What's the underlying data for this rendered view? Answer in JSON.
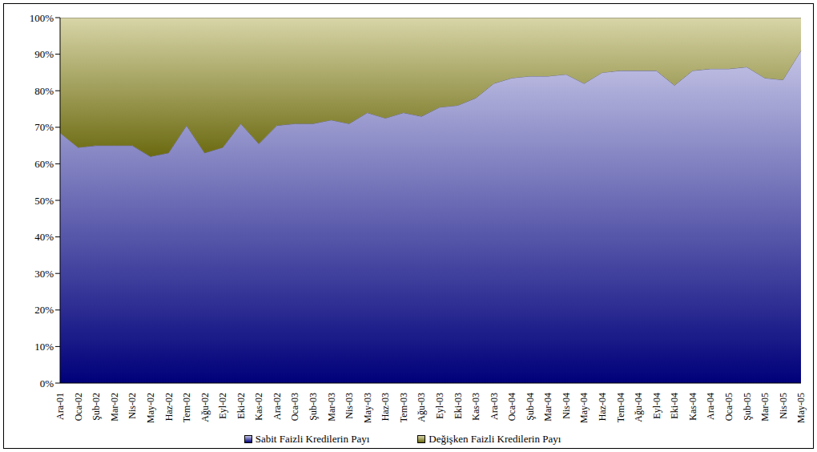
{
  "chart_data": {
    "type": "area",
    "stacked": true,
    "grid": false,
    "legend": "bottom",
    "categories": [
      "Ara-01",
      "Oca-02",
      "Şub-02",
      "Mar-02",
      "Nis-02",
      "May-02",
      "Haz-02",
      "Tem-02",
      "Ağu-02",
      "Eyl-02",
      "Eki-02",
      "Kas-02",
      "Ara-02",
      "Oca-03",
      "Şub-03",
      "Mar-03",
      "Nis-03",
      "May-03",
      "Haz-03",
      "Tem-03",
      "Ağu-03",
      "Eyl-03",
      "Eki-03",
      "Kas-03",
      "Ara-03",
      "Oca-04",
      "Şub-04",
      "Mar-04",
      "Nis-04",
      "May-04",
      "Haz-04",
      "Tem-04",
      "Ağu-04",
      "Eyl-04",
      "Eki-04",
      "Kas-04",
      "Ara-04",
      "Oca-05",
      "Şub-05",
      "Mar-05",
      "Nis-05",
      "May-05"
    ],
    "series": [
      {
        "name": "Sabit Faizli Kredilerin Payı",
        "color": "#c4c4e6",
        "values": [
          68.5,
          64.5,
          65,
          65,
          65,
          62,
          63,
          70.5,
          63,
          64.5,
          71,
          65.5,
          70.5,
          71,
          71,
          72,
          71,
          74,
          72.5,
          74,
          73,
          75.5,
          76,
          78,
          82,
          83.5,
          84,
          84,
          84.5,
          82,
          85,
          85.5,
          85.5,
          85.5,
          81.5,
          85.5,
          86,
          86,
          86.5,
          83.5,
          83,
          91
        ]
      },
      {
        "name": "Değişken Faizli Kredilerin Payı",
        "color": "#d8d5a8",
        "values": [
          31.5,
          35.5,
          35,
          35,
          35,
          38,
          37,
          29.5,
          37,
          35.5,
          29,
          34.5,
          29.5,
          29,
          29,
          28,
          29,
          26,
          27.5,
          26,
          27,
          24.5,
          24,
          22,
          18,
          16.5,
          16,
          16,
          15.5,
          18,
          15,
          14.5,
          14.5,
          14.5,
          18.5,
          14.5,
          14,
          14,
          13.5,
          16.5,
          17,
          9
        ]
      }
    ],
    "ylim": [
      0,
      100
    ],
    "yticks": [
      {
        "value": 0,
        "label": "0%"
      },
      {
        "value": 10,
        "label": "10%"
      },
      {
        "value": 20,
        "label": "20%"
      },
      {
        "value": 30,
        "label": "30%"
      },
      {
        "value": 40,
        "label": "40%"
      },
      {
        "value": 50,
        "label": "50%"
      },
      {
        "value": 60,
        "label": "60%"
      },
      {
        "value": 70,
        "label": "70%"
      },
      {
        "value": 80,
        "label": "80%"
      },
      {
        "value": 90,
        "label": "90%"
      },
      {
        "value": 100,
        "label": "100%"
      }
    ]
  }
}
